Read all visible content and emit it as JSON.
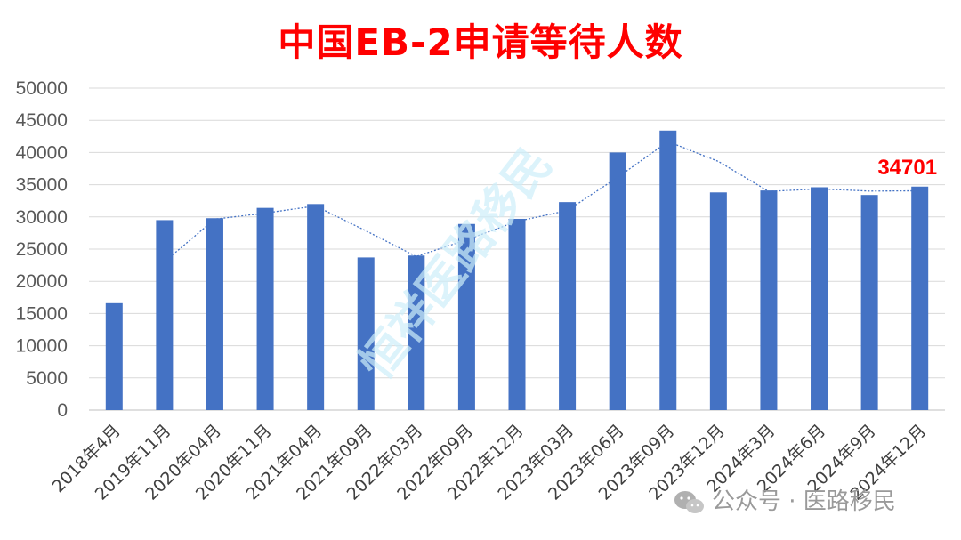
{
  "chart_data": {
    "type": "bar",
    "title": "中国EB-2申请等待人数",
    "categories": [
      "2018年4月",
      "2019年11月",
      "2020年04月",
      "2020年11月",
      "2021年04月",
      "2021年09月",
      "2022年03月",
      "2022年09月",
      "2022年12月",
      "2023年03月",
      "2023年06月",
      "2023年09月",
      "2023年12月",
      "2024年3月",
      "2024年6月",
      "2024年9月",
      "2024年12月"
    ],
    "values": [
      16600,
      29500,
      29800,
      31400,
      32000,
      23700,
      24000,
      28900,
      29700,
      32300,
      40000,
      43400,
      33800,
      34100,
      34600,
      33400,
      34701
    ],
    "trendline": {
      "type": "moving-average",
      "period": 2
    },
    "ylim": [
      0,
      50000
    ],
    "yticks": [
      0,
      5000,
      10000,
      15000,
      20000,
      25000,
      30000,
      35000,
      40000,
      45000,
      50000
    ],
    "xlabel": "",
    "ylabel": "",
    "grid": true,
    "legend": "none",
    "annotations": [
      {
        "category": "2024年12月",
        "text": "34701"
      }
    ],
    "colors": {
      "bar": "#4472c4",
      "trendline": "#4472c4",
      "title": "#ff0000",
      "annotation": "#ff0000",
      "grid": "#d9d9d9"
    }
  },
  "watermark": {
    "diagonal_text": "恒祥医路移民",
    "badge_text": "公众号 · 医路移民",
    "icon": "wechat-icon"
  }
}
